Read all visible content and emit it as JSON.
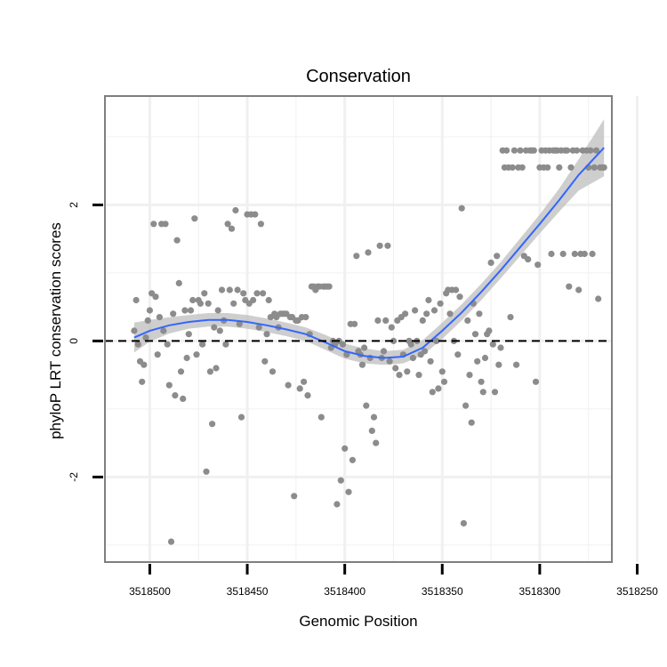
{
  "chart_data": {
    "type": "scatter",
    "title": "Conservation",
    "xlabel": "Genomic Position",
    "ylabel": "phyloP LRT conservation scores",
    "x_reversed": true,
    "xlim": [
      3518263,
      3518523
    ],
    "ylim": [
      -3.25,
      3.6
    ],
    "x_ticks": [
      3518500,
      3518450,
      3518400,
      3518350,
      3518300,
      3518250
    ],
    "x_tick_labels": [
      "3518500",
      "3518450",
      "3518400",
      "3518350",
      "3518300",
      "3518250"
    ],
    "x_minor_ticks": [
      3518475,
      3518425,
      3518375,
      3518325,
      3518275
    ],
    "y_ticks": [
      -2,
      0,
      2
    ],
    "y_tick_labels": [
      "-2",
      "0",
      "2"
    ],
    "y_minor_ticks": [
      -3,
      -1,
      1,
      3
    ],
    "grid": true,
    "reference_line": {
      "y": 0,
      "style": "dashed"
    },
    "colors": {
      "points": "#8c8c8c",
      "smooth_line": "#3366ff",
      "ribbon": "#bdbdbd",
      "grid": "#f0f0f0",
      "panel_border": "#7f7f7f",
      "reference_line": "#000000"
    },
    "points": [
      [
        3518508,
        0.15
      ],
      [
        3518507,
        0.6
      ],
      [
        3518506,
        -0.05
      ],
      [
        3518505,
        -0.3
      ],
      [
        3518504,
        -0.6
      ],
      [
        3518503,
        -0.35
      ],
      [
        3518502,
        0.05
      ],
      [
        3518501,
        0.3
      ],
      [
        3518500,
        0.45
      ],
      [
        3518499,
        0.7
      ],
      [
        3518498,
        1.72
      ],
      [
        3518497,
        0.65
      ],
      [
        3518496,
        -0.2
      ],
      [
        3518495,
        0.35
      ],
      [
        3518494,
        1.72
      ],
      [
        3518493,
        0.15
      ],
      [
        3518492,
        1.72
      ],
      [
        3518491,
        -0.05
      ],
      [
        3518490,
        -0.65
      ],
      [
        3518489,
        -2.95
      ],
      [
        3518488,
        0.4
      ],
      [
        3518487,
        -0.8
      ],
      [
        3518486,
        1.48
      ],
      [
        3518485,
        0.85
      ],
      [
        3518484,
        -0.45
      ],
      [
        3518483,
        -0.85
      ],
      [
        3518482,
        0.45
      ],
      [
        3518481,
        -0.25
      ],
      [
        3518480,
        0.1
      ],
      [
        3518479,
        0.45
      ],
      [
        3518478,
        0.6
      ],
      [
        3518477,
        1.8
      ],
      [
        3518476,
        -0.2
      ],
      [
        3518475,
        0.6
      ],
      [
        3518474,
        0.55
      ],
      [
        3518473,
        -0.05
      ],
      [
        3518472,
        0.7
      ],
      [
        3518471,
        -1.92
      ],
      [
        3518470,
        0.55
      ],
      [
        3518469,
        -0.45
      ],
      [
        3518468,
        -1.22
      ],
      [
        3518467,
        0.2
      ],
      [
        3518466,
        -0.4
      ],
      [
        3518465,
        0.45
      ],
      [
        3518464,
        0.15
      ],
      [
        3518463,
        0.75
      ],
      [
        3518462,
        0.3
      ],
      [
        3518461,
        -0.05
      ],
      [
        3518460,
        1.72
      ],
      [
        3518459,
        0.75
      ],
      [
        3518458,
        1.65
      ],
      [
        3518457,
        0.55
      ],
      [
        3518456,
        1.92
      ],
      [
        3518455,
        0.75
      ],
      [
        3518454,
        0.25
      ],
      [
        3518453,
        -1.12
      ],
      [
        3518452,
        0.7
      ],
      [
        3518451,
        0.6
      ],
      [
        3518450,
        1.86
      ],
      [
        3518449,
        0.55
      ],
      [
        3518448,
        1.86
      ],
      [
        3518447,
        0.6
      ],
      [
        3518446,
        1.86
      ],
      [
        3518445,
        0.7
      ],
      [
        3518444,
        0.2
      ],
      [
        3518443,
        1.72
      ],
      [
        3518442,
        0.7
      ],
      [
        3518441,
        -0.3
      ],
      [
        3518440,
        0.1
      ],
      [
        3518439,
        0.6
      ],
      [
        3518438,
        0.35
      ],
      [
        3518437,
        -0.45
      ],
      [
        3518436,
        0.4
      ],
      [
        3518435,
        0.35
      ],
      [
        3518434,
        0.2
      ],
      [
        3518433,
        0.4
      ],
      [
        3518432,
        0.4
      ],
      [
        3518431,
        0.4
      ],
      [
        3518430,
        0.4
      ],
      [
        3518429,
        -0.65
      ],
      [
        3518428,
        0.35
      ],
      [
        3518427,
        0.35
      ],
      [
        3518426,
        -2.28
      ],
      [
        3518425,
        0.3
      ],
      [
        3518424,
        0.3
      ],
      [
        3518423,
        -0.7
      ],
      [
        3518422,
        0.35
      ],
      [
        3518421,
        -0.6
      ],
      [
        3518420,
        0.35
      ],
      [
        3518419,
        -0.8
      ],
      [
        3518418,
        0.1
      ],
      [
        3518417,
        0.8
      ],
      [
        3518416,
        0.8
      ],
      [
        3518415,
        0.75
      ],
      [
        3518414,
        0.8
      ],
      [
        3518413,
        0.8
      ],
      [
        3518412,
        -1.12
      ],
      [
        3518411,
        0.8
      ],
      [
        3518410,
        0.8
      ],
      [
        3518409,
        0.8
      ],
      [
        3518408,
        0.8
      ],
      [
        3518407,
        -0.1
      ],
      [
        3518406,
        0.0
      ],
      [
        3518405,
        -0.05
      ],
      [
        3518404,
        -2.4
      ],
      [
        3518403,
        0.0
      ],
      [
        3518402,
        -2.05
      ],
      [
        3518401,
        -0.05
      ],
      [
        3518400,
        -1.58
      ],
      [
        3518399,
        -0.2
      ],
      [
        3518398,
        -2.22
      ],
      [
        3518397,
        0.25
      ],
      [
        3518396,
        -1.75
      ],
      [
        3518395,
        0.25
      ],
      [
        3518394,
        1.25
      ],
      [
        3518393,
        -0.15
      ],
      [
        3518392,
        -0.2
      ],
      [
        3518391,
        -0.35
      ],
      [
        3518390,
        -0.1
      ],
      [
        3518389,
        -0.95
      ],
      [
        3518388,
        1.3
      ],
      [
        3518387,
        -0.25
      ],
      [
        3518386,
        -1.32
      ],
      [
        3518385,
        -1.12
      ],
      [
        3518384,
        -1.5
      ],
      [
        3518383,
        0.3
      ],
      [
        3518382,
        1.4
      ],
      [
        3518381,
        -0.25
      ],
      [
        3518380,
        -0.15
      ],
      [
        3518379,
        0.3
      ],
      [
        3518378,
        1.4
      ],
      [
        3518377,
        -0.3
      ],
      [
        3518376,
        0.2
      ],
      [
        3518375,
        0.0
      ],
      [
        3518374,
        -0.4
      ],
      [
        3518373,
        0.3
      ],
      [
        3518372,
        -0.5
      ],
      [
        3518371,
        0.35
      ],
      [
        3518370,
        -0.2
      ],
      [
        3518369,
        0.4
      ],
      [
        3518368,
        -0.45
      ],
      [
        3518367,
        0.0
      ],
      [
        3518366,
        -0.05
      ],
      [
        3518365,
        -0.25
      ],
      [
        3518364,
        0.45
      ],
      [
        3518363,
        0.0
      ],
      [
        3518362,
        -0.5
      ],
      [
        3518361,
        -0.2
      ],
      [
        3518360,
        0.3
      ],
      [
        3518359,
        -0.15
      ],
      [
        3518358,
        0.4
      ],
      [
        3518357,
        0.6
      ],
      [
        3518356,
        -0.3
      ],
      [
        3518355,
        -0.75
      ],
      [
        3518354,
        0.45
      ],
      [
        3518353,
        0.0
      ],
      [
        3518352,
        -0.7
      ],
      [
        3518351,
        0.55
      ],
      [
        3518350,
        -0.45
      ],
      [
        3518349,
        -0.6
      ],
      [
        3518348,
        0.7
      ],
      [
        3518347,
        0.75
      ],
      [
        3518346,
        0.4
      ],
      [
        3518345,
        0.75
      ],
      [
        3518344,
        0.0
      ],
      [
        3518343,
        0.75
      ],
      [
        3518342,
        -0.2
      ],
      [
        3518341,
        0.65
      ],
      [
        3518340,
        1.95
      ],
      [
        3518339,
        -2.68
      ],
      [
        3518338,
        -0.95
      ],
      [
        3518337,
        0.3
      ],
      [
        3518336,
        -0.5
      ],
      [
        3518335,
        -1.2
      ],
      [
        3518334,
        0.55
      ],
      [
        3518333,
        0.1
      ],
      [
        3518332,
        -0.3
      ],
      [
        3518331,
        0.4
      ],
      [
        3518330,
        -0.6
      ],
      [
        3518329,
        -0.75
      ],
      [
        3518328,
        -0.25
      ],
      [
        3518327,
        0.1
      ],
      [
        3518326,
        0.15
      ],
      [
        3518325,
        1.15
      ],
      [
        3518324,
        -0.05
      ],
      [
        3518323,
        -0.75
      ],
      [
        3518322,
        1.25
      ],
      [
        3518321,
        -0.35
      ],
      [
        3518320,
        -0.1
      ],
      [
        3518319,
        2.8
      ],
      [
        3518318,
        2.55
      ],
      [
        3518317,
        2.8
      ],
      [
        3518316,
        2.55
      ],
      [
        3518315,
        0.35
      ],
      [
        3518314,
        2.55
      ],
      [
        3518313,
        2.8
      ],
      [
        3518312,
        -0.35
      ],
      [
        3518311,
        2.55
      ],
      [
        3518310,
        2.8
      ],
      [
        3518309,
        2.55
      ],
      [
        3518308,
        1.25
      ],
      [
        3518307,
        2.8
      ],
      [
        3518306,
        1.2
      ],
      [
        3518305,
        2.8
      ],
      [
        3518304,
        2.8
      ],
      [
        3518303,
        2.8
      ],
      [
        3518302,
        -0.6
      ],
      [
        3518301,
        1.12
      ],
      [
        3518300,
        2.55
      ],
      [
        3518299,
        2.8
      ],
      [
        3518298,
        2.55
      ],
      [
        3518297,
        2.8
      ],
      [
        3518296,
        2.55
      ],
      [
        3518295,
        2.8
      ],
      [
        3518294,
        1.28
      ],
      [
        3518293,
        2.8
      ],
      [
        3518292,
        2.8
      ],
      [
        3518291,
        2.8
      ],
      [
        3518290,
        2.55
      ],
      [
        3518289,
        2.8
      ],
      [
        3518288,
        1.28
      ],
      [
        3518287,
        2.8
      ],
      [
        3518286,
        2.8
      ],
      [
        3518285,
        0.8
      ],
      [
        3518284,
        2.55
      ],
      [
        3518283,
        2.8
      ],
      [
        3518282,
        1.28
      ],
      [
        3518281,
        2.8
      ],
      [
        3518280,
        0.75
      ],
      [
        3518279,
        1.28
      ],
      [
        3518278,
        2.8
      ],
      [
        3518277,
        1.28
      ],
      [
        3518276,
        2.8
      ],
      [
        3518275,
        2.55
      ],
      [
        3518274,
        2.8
      ],
      [
        3518273,
        1.28
      ],
      [
        3518272,
        2.55
      ],
      [
        3518271,
        2.8
      ],
      [
        3518270,
        0.62
      ],
      [
        3518269,
        2.55
      ],
      [
        3518268,
        2.55
      ],
      [
        3518267,
        2.55
      ]
    ],
    "smooth": [
      [
        3518508,
        0.05
      ],
      [
        3518500,
        0.15
      ],
      [
        3518490,
        0.23
      ],
      [
        3518480,
        0.28
      ],
      [
        3518470,
        0.31
      ],
      [
        3518460,
        0.31
      ],
      [
        3518450,
        0.28
      ],
      [
        3518440,
        0.23
      ],
      [
        3518430,
        0.17
      ],
      [
        3518420,
        0.1
      ],
      [
        3518410,
        -0.02
      ],
      [
        3518400,
        -0.15
      ],
      [
        3518390,
        -0.22
      ],
      [
        3518380,
        -0.25
      ],
      [
        3518370,
        -0.23
      ],
      [
        3518360,
        -0.1
      ],
      [
        3518350,
        0.15
      ],
      [
        3518340,
        0.42
      ],
      [
        3518330,
        0.72
      ],
      [
        3518320,
        1.04
      ],
      [
        3518310,
        1.38
      ],
      [
        3518300,
        1.72
      ],
      [
        3518290,
        2.07
      ],
      [
        3518280,
        2.44
      ],
      [
        3518267,
        2.84
      ]
    ],
    "smooth_ci_halfwidth": [
      [
        3518508,
        0.22
      ],
      [
        3518500,
        0.16
      ],
      [
        3518490,
        0.12
      ],
      [
        3518480,
        0.1
      ],
      [
        3518470,
        0.1
      ],
      [
        3518460,
        0.1
      ],
      [
        3518450,
        0.1
      ],
      [
        3518440,
        0.1
      ],
      [
        3518430,
        0.1
      ],
      [
        3518420,
        0.1
      ],
      [
        3518410,
        0.11
      ],
      [
        3518400,
        0.11
      ],
      [
        3518390,
        0.11
      ],
      [
        3518380,
        0.1
      ],
      [
        3518370,
        0.1
      ],
      [
        3518360,
        0.11
      ],
      [
        3518350,
        0.12
      ],
      [
        3518340,
        0.12
      ],
      [
        3518330,
        0.12
      ],
      [
        3518320,
        0.12
      ],
      [
        3518310,
        0.13
      ],
      [
        3518300,
        0.14
      ],
      [
        3518290,
        0.17
      ],
      [
        3518280,
        0.23
      ],
      [
        3518267,
        0.42
      ]
    ]
  }
}
